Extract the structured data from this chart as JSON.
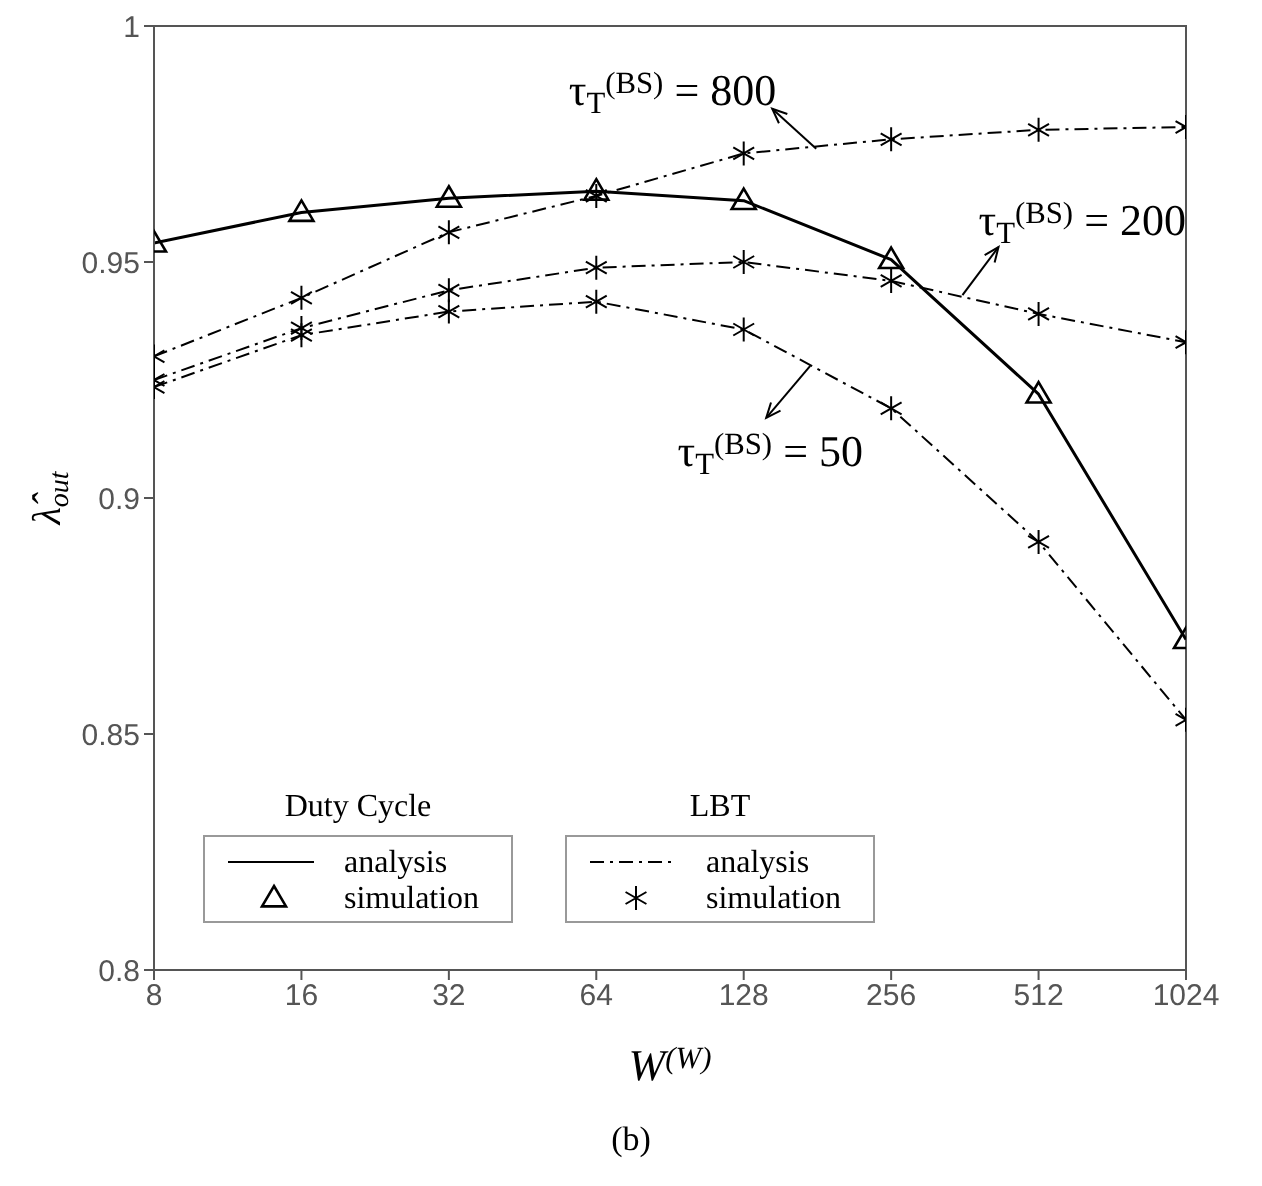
{
  "chart_data": {
    "type": "line",
    "xlabel": "W$^{(W)}$",
    "ylabel": "λ̂$_{out}$",
    "log": "x",
    "x": [
      8,
      16,
      32,
      64,
      128,
      256,
      512,
      1024
    ],
    "xlim": [
      8,
      1024
    ],
    "xticks": [
      8,
      16,
      32,
      64,
      128,
      256,
      512,
      1024
    ],
    "ylim": [
      0.8,
      1
    ],
    "yticks": [
      0.8,
      0.85,
      0.9,
      0.95,
      1
    ],
    "grid": false,
    "legend": "bottom left",
    "series": [
      {
        "name": "analysis",
        "type": "line",
        "color": "#000000",
        "line_style": "solid",
        "marker": "none",
        "values": [
          0.954,
          0.9605,
          0.9635,
          0.965,
          0.963,
          0.9505,
          0.922,
          0.87
        ]
      },
      {
        "name": "simulation",
        "type": "scatter",
        "color": "#000000",
        "marker": "triangle",
        "values": [
          0.954,
          0.9605,
          0.9635,
          0.965,
          0.963,
          0.9505,
          0.922,
          0.87
        ]
      },
      {
        "name": "analysis",
        "type": "line",
        "color": "#000000",
        "line_style": "dashed",
        "marker": "none",
        "values": [
          0.93,
          0.9424,
          0.9563,
          0.964,
          0.973,
          0.976,
          0.978,
          0.9786
        ]
      },
      {
        "name": "simulation",
        "type": "scatter",
        "color": "#000000",
        "marker": "cross",
        "values": [
          0.93,
          0.9424,
          0.9563,
          0.964,
          0.973,
          0.976,
          0.978,
          0.9786
        ]
      },
      {
        "type": "line",
        "color": "#000000",
        "line_style": "dashed",
        "marker": "none",
        "values": [
          0.925,
          0.936,
          0.944,
          0.9488,
          0.95,
          0.946,
          0.939,
          0.933
        ]
      },
      {
        "type": "scatter",
        "color": "#000000",
        "marker": "cross",
        "values": [
          0.925,
          0.936,
          0.944,
          0.9488,
          0.95,
          0.946,
          0.939,
          0.933
        ]
      },
      {
        "type": "line",
        "color": "#000000",
        "line_style": "dashed",
        "marker": "none",
        "values": [
          0.9235,
          0.9345,
          0.9395,
          0.9416,
          0.9357,
          0.919,
          0.8907,
          0.853
        ]
      },
      {
        "type": "scatter",
        "color": "#000000",
        "marker": "cross",
        "values": [
          0.9235,
          0.9345,
          0.9395,
          0.9416,
          0.9357,
          0.919,
          0.8907,
          0.853
        ]
      }
    ],
    "annotations": [
      "Duty Cycle",
      "LBT",
      {
        "text": "τ$_{T}$$^{(BS)}$ = 800",
        "x": 180,
        "y": 0.974
      },
      {
        "text": "τ$_{T}$$^{(BS)}$ = 200",
        "x": 358,
        "y": 0.943
      },
      {
        "text": "τ$_{T}$$^{(BS)}$ = 50",
        "x": 175,
        "y": 0.928
      },
      "(b)"
    ]
  }
}
